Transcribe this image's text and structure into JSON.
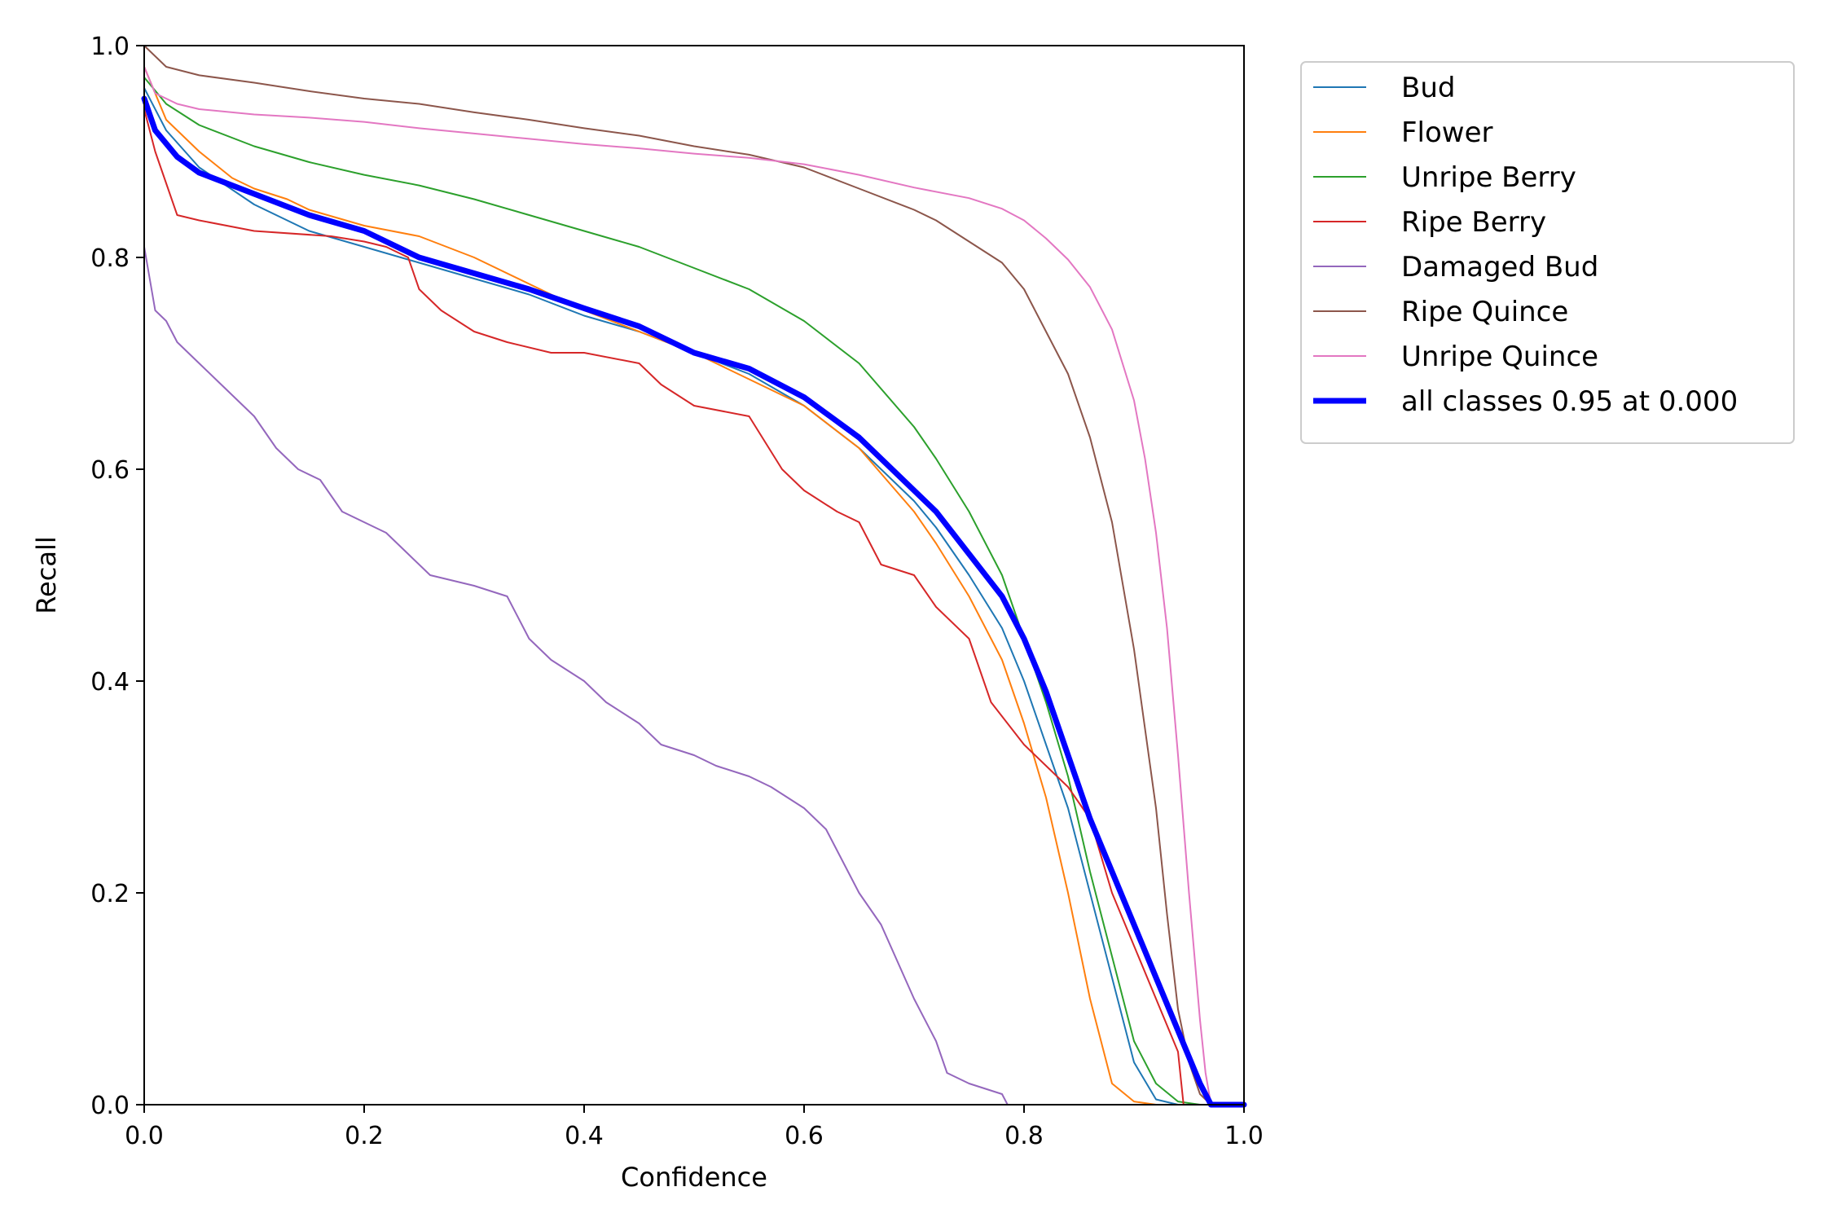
{
  "chart_data": {
    "type": "line",
    "title": "",
    "xlabel": "Confidence",
    "ylabel": "Recall",
    "xlim": [
      0,
      1
    ],
    "ylim": [
      0,
      1
    ],
    "xticks": [
      "0.0",
      "0.2",
      "0.4",
      "0.6",
      "0.8",
      "1.0"
    ],
    "yticks": [
      "0.0",
      "0.2",
      "0.4",
      "0.6",
      "0.8",
      "1.0"
    ],
    "grid": false,
    "legend_position": "outside-top-right",
    "series": [
      {
        "name": "Bud",
        "color": "#1f77b4",
        "width": 2,
        "x": [
          0,
          0.02,
          0.05,
          0.1,
          0.15,
          0.2,
          0.25,
          0.3,
          0.35,
          0.4,
          0.45,
          0.5,
          0.55,
          0.6,
          0.65,
          0.7,
          0.72,
          0.75,
          0.78,
          0.8,
          0.82,
          0.84,
          0.86,
          0.88,
          0.9,
          0.92,
          0.94,
          1.0
        ],
        "y": [
          0.96,
          0.92,
          0.885,
          0.85,
          0.825,
          0.81,
          0.795,
          0.78,
          0.765,
          0.745,
          0.73,
          0.71,
          0.69,
          0.66,
          0.62,
          0.57,
          0.545,
          0.5,
          0.45,
          0.4,
          0.34,
          0.28,
          0.2,
          0.12,
          0.04,
          0.005,
          0,
          0
        ]
      },
      {
        "name": "Flower",
        "color": "#ff7f0e",
        "width": 2,
        "x": [
          0,
          0.02,
          0.05,
          0.08,
          0.1,
          0.13,
          0.15,
          0.2,
          0.25,
          0.3,
          0.35,
          0.4,
          0.45,
          0.5,
          0.55,
          0.6,
          0.65,
          0.7,
          0.72,
          0.75,
          0.78,
          0.8,
          0.82,
          0.84,
          0.86,
          0.88,
          0.9,
          0.92,
          1.0
        ],
        "y": [
          0.98,
          0.93,
          0.9,
          0.875,
          0.865,
          0.855,
          0.845,
          0.83,
          0.82,
          0.8,
          0.775,
          0.75,
          0.73,
          0.71,
          0.685,
          0.66,
          0.62,
          0.56,
          0.53,
          0.48,
          0.42,
          0.36,
          0.29,
          0.2,
          0.1,
          0.02,
          0.003,
          0,
          0
        ]
      },
      {
        "name": "Unripe Berry",
        "color": "#2ca02c",
        "width": 2,
        "x": [
          0,
          0.02,
          0.05,
          0.1,
          0.15,
          0.2,
          0.25,
          0.3,
          0.35,
          0.4,
          0.45,
          0.5,
          0.55,
          0.6,
          0.65,
          0.7,
          0.72,
          0.75,
          0.78,
          0.8,
          0.82,
          0.84,
          0.86,
          0.88,
          0.9,
          0.92,
          0.94,
          0.96,
          1.0
        ],
        "y": [
          0.97,
          0.945,
          0.925,
          0.905,
          0.89,
          0.878,
          0.868,
          0.855,
          0.84,
          0.825,
          0.81,
          0.79,
          0.77,
          0.74,
          0.7,
          0.64,
          0.61,
          0.56,
          0.5,
          0.44,
          0.38,
          0.31,
          0.22,
          0.14,
          0.06,
          0.02,
          0.003,
          0,
          0
        ]
      },
      {
        "name": "Ripe Berry",
        "color": "#d62728",
        "width": 2,
        "x": [
          0,
          0.01,
          0.02,
          0.03,
          0.05,
          0.1,
          0.17,
          0.2,
          0.22,
          0.24,
          0.25,
          0.27,
          0.3,
          0.33,
          0.37,
          0.4,
          0.45,
          0.47,
          0.5,
          0.55,
          0.58,
          0.6,
          0.63,
          0.65,
          0.67,
          0.7,
          0.72,
          0.75,
          0.77,
          0.8,
          0.82,
          0.84,
          0.86,
          0.88,
          0.9,
          0.92,
          0.94,
          0.945,
          1.0
        ],
        "y": [
          0.94,
          0.9,
          0.87,
          0.84,
          0.835,
          0.825,
          0.82,
          0.815,
          0.81,
          0.8,
          0.77,
          0.75,
          0.73,
          0.72,
          0.71,
          0.71,
          0.7,
          0.68,
          0.66,
          0.65,
          0.6,
          0.58,
          0.56,
          0.55,
          0.51,
          0.5,
          0.47,
          0.44,
          0.38,
          0.34,
          0.32,
          0.3,
          0.27,
          0.2,
          0.15,
          0.1,
          0.05,
          0,
          0
        ]
      },
      {
        "name": "Damaged Bud",
        "color": "#9467bd",
        "width": 2,
        "x": [
          0,
          0.01,
          0.02,
          0.03,
          0.05,
          0.07,
          0.09,
          0.1,
          0.12,
          0.14,
          0.16,
          0.18,
          0.2,
          0.22,
          0.24,
          0.26,
          0.3,
          0.33,
          0.35,
          0.37,
          0.4,
          0.42,
          0.45,
          0.47,
          0.5,
          0.52,
          0.55,
          0.57,
          0.6,
          0.62,
          0.65,
          0.67,
          0.7,
          0.72,
          0.73,
          0.75,
          0.78,
          0.785,
          1.0
        ],
        "y": [
          0.81,
          0.75,
          0.74,
          0.72,
          0.7,
          0.68,
          0.66,
          0.65,
          0.62,
          0.6,
          0.59,
          0.56,
          0.55,
          0.54,
          0.52,
          0.5,
          0.49,
          0.48,
          0.44,
          0.42,
          0.4,
          0.38,
          0.36,
          0.34,
          0.33,
          0.32,
          0.31,
          0.3,
          0.28,
          0.26,
          0.2,
          0.17,
          0.1,
          0.06,
          0.03,
          0.02,
          0.01,
          0,
          0
        ]
      },
      {
        "name": "Ripe Quince",
        "color": "#8c564b",
        "width": 2,
        "x": [
          0,
          0.02,
          0.05,
          0.1,
          0.15,
          0.2,
          0.25,
          0.3,
          0.35,
          0.4,
          0.45,
          0.5,
          0.55,
          0.6,
          0.65,
          0.7,
          0.72,
          0.75,
          0.78,
          0.8,
          0.82,
          0.84,
          0.86,
          0.88,
          0.9,
          0.92,
          0.93,
          0.94,
          0.95,
          0.96,
          0.97,
          1.0
        ],
        "y": [
          1.0,
          0.98,
          0.972,
          0.965,
          0.957,
          0.95,
          0.945,
          0.937,
          0.93,
          0.922,
          0.915,
          0.905,
          0.897,
          0.885,
          0.865,
          0.845,
          0.835,
          0.815,
          0.795,
          0.77,
          0.73,
          0.69,
          0.63,
          0.55,
          0.43,
          0.28,
          0.18,
          0.09,
          0.04,
          0.01,
          0,
          0
        ]
      },
      {
        "name": "Unripe Quince",
        "color": "#e377c2",
        "width": 2,
        "x": [
          0,
          0.01,
          0.03,
          0.05,
          0.1,
          0.15,
          0.2,
          0.25,
          0.3,
          0.35,
          0.4,
          0.45,
          0.5,
          0.55,
          0.6,
          0.65,
          0.7,
          0.75,
          0.78,
          0.8,
          0.82,
          0.84,
          0.86,
          0.88,
          0.9,
          0.91,
          0.92,
          0.93,
          0.94,
          0.95,
          0.96,
          0.965,
          0.97,
          1.0
        ],
        "y": [
          0.98,
          0.955,
          0.945,
          0.94,
          0.935,
          0.932,
          0.928,
          0.922,
          0.917,
          0.912,
          0.907,
          0.903,
          0.898,
          0.894,
          0.888,
          0.878,
          0.866,
          0.856,
          0.846,
          0.835,
          0.818,
          0.798,
          0.772,
          0.732,
          0.665,
          0.61,
          0.54,
          0.45,
          0.33,
          0.2,
          0.08,
          0.03,
          0,
          0
        ]
      },
      {
        "name": "all classes 0.95 at 0.000",
        "color": "#0000ff",
        "width": 7,
        "x": [
          0,
          0.01,
          0.03,
          0.05,
          0.1,
          0.15,
          0.2,
          0.25,
          0.3,
          0.35,
          0.4,
          0.45,
          0.5,
          0.55,
          0.6,
          0.65,
          0.68,
          0.7,
          0.72,
          0.75,
          0.78,
          0.8,
          0.82,
          0.84,
          0.86,
          0.88,
          0.9,
          0.92,
          0.94,
          0.96,
          0.97,
          1.0
        ],
        "y": [
          0.95,
          0.92,
          0.895,
          0.88,
          0.86,
          0.84,
          0.825,
          0.8,
          0.785,
          0.77,
          0.752,
          0.735,
          0.71,
          0.695,
          0.668,
          0.63,
          0.6,
          0.58,
          0.56,
          0.52,
          0.48,
          0.44,
          0.39,
          0.33,
          0.27,
          0.22,
          0.17,
          0.12,
          0.07,
          0.02,
          0,
          0
        ]
      }
    ]
  }
}
